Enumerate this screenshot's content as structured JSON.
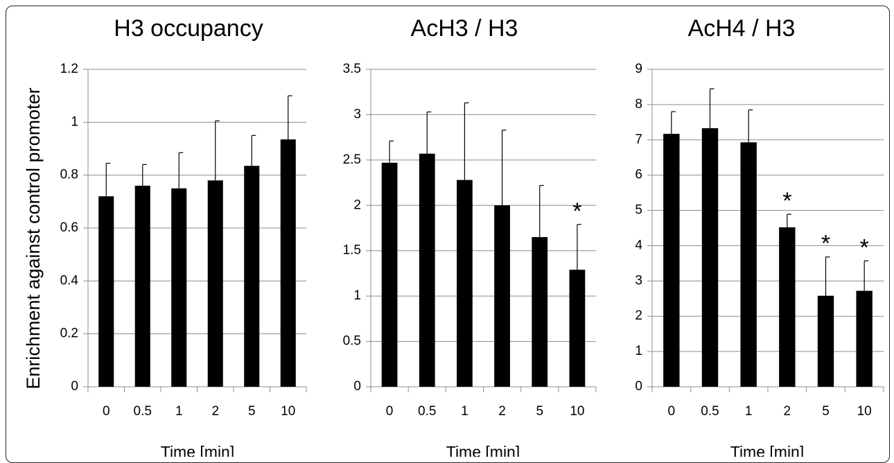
{
  "figure": {
    "shared_ylabel": "Enrichment against control promoter"
  },
  "chart_data": [
    {
      "type": "bar",
      "title": "H3 occupancy",
      "xlabel": "Time [min]",
      "ylabel": "Enrichment against control promoter",
      "categories": [
        "0",
        "0.5",
        "1",
        "2",
        "5",
        "10"
      ],
      "values": [
        0.72,
        0.76,
        0.75,
        0.78,
        0.835,
        0.935
      ],
      "errors": [
        0.125,
        0.08,
        0.135,
        0.225,
        0.115,
        0.165
      ],
      "significant": [
        false,
        false,
        false,
        false,
        false,
        false
      ],
      "significance_marker": "*",
      "ylim": [
        0,
        1.2
      ],
      "yticks": [
        0,
        0.2,
        0.4,
        0.6,
        0.8,
        1,
        1.2
      ],
      "ytick_labels": [
        "0",
        "0.2",
        "0.4",
        "0.6",
        "0.8",
        "1",
        "1.2"
      ],
      "grid": true,
      "bar_color": "#000000"
    },
    {
      "type": "bar",
      "title": "AcH3 / H3",
      "xlabel": "Time [min]",
      "ylabel": "",
      "categories": [
        "0",
        "0.5",
        "1",
        "2",
        "5",
        "10"
      ],
      "values": [
        2.47,
        2.57,
        2.28,
        2.0,
        1.65,
        1.29
      ],
      "errors": [
        0.24,
        0.46,
        0.85,
        0.83,
        0.57,
        0.5
      ],
      "significant": [
        false,
        false,
        false,
        false,
        false,
        true
      ],
      "significance_marker": "*",
      "ylim": [
        0,
        3.5
      ],
      "yticks": [
        0,
        0.5,
        1,
        1.5,
        2,
        2.5,
        3,
        3.5
      ],
      "ytick_labels": [
        "0",
        "0.5",
        "1",
        "1.5",
        "2",
        "2.5",
        "3",
        "3.5"
      ],
      "grid": true,
      "bar_color": "#000000"
    },
    {
      "type": "bar",
      "title": "AcH4 / H3",
      "xlabel": "Time [min]",
      "ylabel": "",
      "categories": [
        "0",
        "0.5",
        "1",
        "2",
        "5",
        "10"
      ],
      "values": [
        7.17,
        7.33,
        6.93,
        4.52,
        2.58,
        2.72
      ],
      "errors": [
        0.63,
        1.12,
        0.92,
        0.37,
        1.1,
        0.85
      ],
      "significant": [
        false,
        false,
        false,
        true,
        true,
        true
      ],
      "significance_marker": "*",
      "ylim": [
        0,
        9
      ],
      "yticks": [
        0,
        1,
        2,
        3,
        4,
        5,
        6,
        7,
        8,
        9
      ],
      "ytick_labels": [
        "0",
        "1",
        "2",
        "3",
        "4",
        "5",
        "6",
        "7",
        "8",
        "9"
      ],
      "grid": true,
      "bar_color": "#000000"
    }
  ]
}
